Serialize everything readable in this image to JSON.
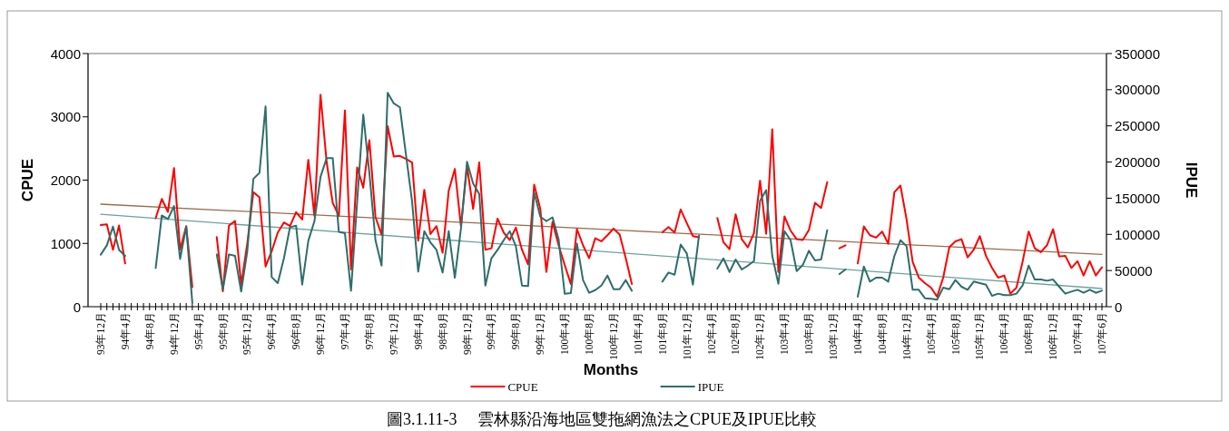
{
  "chart_data": {
    "type": "line",
    "title": "圖3.1.11-3　 雲林縣沿海地區雙拖網漁法之CPUE及IPUE比較",
    "xlabel": "Months",
    "ylabel": "CPUE",
    "y2label": "IPUE",
    "categories": [
      "93年12月",
      null,
      null,
      null,
      "94年4月",
      null,
      null,
      null,
      "94年8月",
      null,
      null,
      null,
      "94年12月",
      null,
      null,
      null,
      "95年4月",
      null,
      null,
      null,
      "95年8月",
      null,
      null,
      null,
      "95年12月",
      null,
      null,
      null,
      "96年4月",
      null,
      null,
      null,
      "96年8月",
      null,
      null,
      null,
      "96年12月",
      null,
      null,
      null,
      "97年4月",
      null,
      null,
      null,
      "97年8月",
      null,
      null,
      null,
      "97年12月",
      null,
      null,
      null,
      "98年4月",
      null,
      null,
      null,
      "98年8月",
      null,
      null,
      null,
      "98年12月",
      null,
      null,
      null,
      "99年4月",
      null,
      null,
      null,
      "99年8月",
      null,
      null,
      null,
      "99年12月",
      null,
      null,
      null,
      "100年4月",
      null,
      null,
      null,
      "100年8月",
      null,
      null,
      null,
      "100年12月",
      null,
      null,
      null,
      "101年4月",
      null,
      null,
      null,
      "101年8月",
      null,
      null,
      null,
      "101年12月",
      null,
      null,
      null,
      "102年4月",
      null,
      null,
      null,
      "102年8月",
      null,
      null,
      null,
      "102年12月",
      null,
      null,
      null,
      "103年4月",
      null,
      null,
      null,
      "103年8月",
      null,
      null,
      null,
      "103年12月",
      null,
      null,
      null,
      "104年4月",
      null,
      null,
      null,
      "104年8月",
      null,
      null,
      null,
      "104年12月",
      null,
      null,
      null,
      "105年4月",
      null,
      null,
      null,
      "105年8月",
      null,
      null,
      null,
      "105年12月",
      null,
      null,
      null,
      "106年4月",
      null,
      null,
      null,
      "106年8月",
      null,
      null,
      null,
      "106年12月",
      null,
      null,
      null,
      "107年4月",
      null,
      null,
      null,
      "107年6月"
    ],
    "series": [
      {
        "name": "CPUE",
        "color": "#ff0000",
        "axis": "y",
        "values": [
          1292,
          1300,
          900,
          1282,
          684,
          null,
          null,
          null,
          null,
          1397,
          1703,
          1498,
          2191,
          900,
          1273,
          311,
          null,
          null,
          null,
          1100,
          244,
          1282,
          1354,
          349,
          995,
          1809,
          1727,
          636,
          875,
          1172,
          1330,
          1273,
          1493,
          1378,
          2320,
          1435,
          3349,
          2287,
          1641,
          1435,
          3100,
          589,
          2201,
          1880,
          2632,
          1416,
          1139,
          2852,
          2373,
          2383,
          2335,
          2278,
          1043,
          1847,
          1148,
          1273,
          852,
          1833,
          2177,
          1273,
          2215,
          1545,
          2278,
          900,
          923,
          1392,
          1172,
          1053,
          1249,
          900,
          670,
          1928,
          1545,
          550,
          1340,
          971,
          660,
          359,
          1225,
          971,
          766,
          1081,
          1033,
          1129,
          1234,
          1139,
          766,
          359,
          null,
          null,
          null,
          null,
          1177,
          1258,
          1172,
          1536,
          1321,
          1115,
          1096,
          null,
          null,
          1402,
          1019,
          909,
          1459,
          1067,
          938,
          1163,
          1990,
          1153,
          2804,
          550,
          1426,
          1201,
          1067,
          1053,
          1211,
          1641,
          1560,
          1967,
          null,
          923,
          971,
          null,
          684,
          1268,
          1129,
          1091,
          1187,
          995,
          1809,
          1914,
          1378,
          708,
          459,
          373,
          301,
          158,
          459,
          938,
          1033,
          1067,
          780,
          900,
          1115,
          804,
          612,
          459,
          493,
          206,
          301,
          708,
          1187,
          923,
          861,
          971,
          1225,
          794,
          804,
          612,
          718,
          493,
          718,
          493,
          622
        ]
      },
      {
        "name": "IPUE",
        "color": "#2e6e6a",
        "axis": "y2",
        "values": [
          72000,
          84800,
          110700,
          78500,
          70200,
          null,
          null,
          null,
          null,
          53500,
          126100,
          121100,
          139100,
          66000,
          110700,
          5400,
          null,
          null,
          null,
          72300,
          24200,
          72300,
          70200,
          20900,
          76400,
          176700,
          185000,
          277000,
          40900,
          32600,
          66800,
          109900,
          112000,
          30500,
          91100,
          118200,
          179600,
          205500,
          205500,
          103600,
          101500,
          22100,
          145400,
          265700,
          185000,
          91900,
          56800,
          295700,
          281100,
          275700,
          210100,
          145400,
          48500,
          104400,
          89000,
          78500,
          47200,
          104400,
          40100,
          107800,
          200500,
          170400,
          155800,
          29200,
          67000,
          78500,
          91900,
          104400,
          83600,
          29200,
          28400,
          157900,
          124500,
          118200,
          123600,
          93100,
          18000,
          18800,
          87300,
          36800,
          19200,
          22900,
          29200,
          43000,
          24200,
          24200,
          36800,
          22100,
          null,
          null,
          null,
          null,
          34700,
          47200,
          44300,
          86000,
          73500,
          30500,
          98600,
          null,
          null,
          52600,
          66800,
          48000,
          65200,
          51400,
          56800,
          63100,
          146600,
          161200,
          70200,
          31700,
          104400,
          91900,
          49300,
          57600,
          77300,
          63900,
          65200,
          105700,
          null,
          45100,
          51400,
          null,
          13800,
          55600,
          34700,
          40100,
          40100,
          34700,
          70200,
          91900,
          83600,
          23400,
          23400,
          11700,
          10900,
          9600,
          26300,
          24200,
          36800,
          27600,
          23400,
          34700,
          32600,
          30500,
          15000,
          18000,
          15900,
          15900,
          18000,
          29200,
          56800,
          37600,
          37600,
          35900,
          37600,
          27600,
          18000,
          20900,
          23400,
          19200,
          23400,
          19200,
          22100
        ]
      },
      {
        "type": "line",
        "color": "#9c6b4a",
        "axis": "y",
        "x": [
          "93年12月",
          "107年6月"
        ],
        "values": [
          1620,
          826
        ]
      },
      {
        "type": "line",
        "color": "#6aa39c",
        "axis": "y2",
        "x": [
          "93年12月",
          "107年6月"
        ],
        "values": [
          127800,
          25100
        ]
      }
    ],
    "ylim": [
      0,
      4000
    ],
    "yticks": [
      0,
      1000,
      2000,
      3000,
      4000
    ],
    "y2lim": [
      0,
      350000
    ],
    "y2ticks": [
      0,
      50000,
      100000,
      150000,
      200000,
      250000,
      300000,
      350000
    ],
    "legend": "bottom",
    "line_style": "solid"
  }
}
